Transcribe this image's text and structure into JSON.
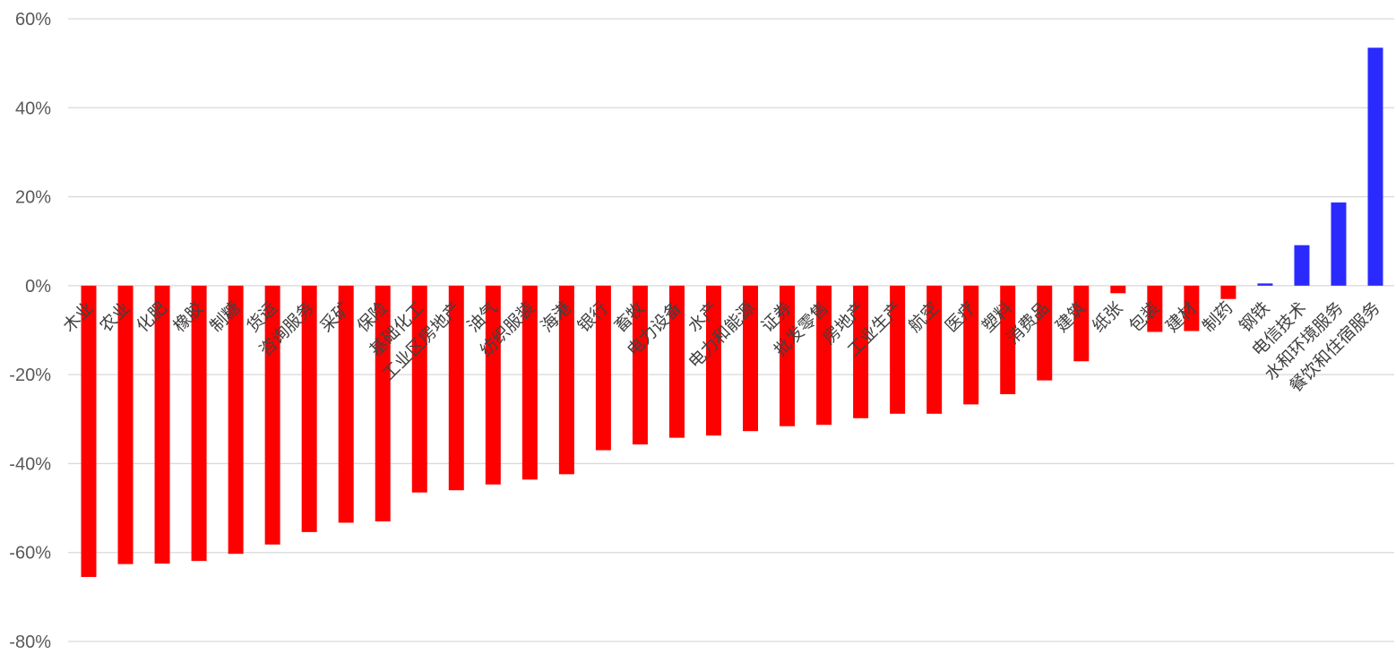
{
  "chart_data": {
    "type": "bar",
    "title": "",
    "xlabel": "",
    "ylabel": "",
    "ylim": [
      -0.8,
      0.6
    ],
    "yticks": [
      0.6,
      0.4,
      0.2,
      0,
      -0.2,
      -0.4,
      -0.6,
      -0.8
    ],
    "ytick_labels": [
      "60%",
      "40%",
      "20%",
      "0%",
      "-20%",
      "-40%",
      "-60%",
      "-80%"
    ],
    "grid": true,
    "legend": "none",
    "negative_color": "#ff0000",
    "positive_color": "#2a2aff",
    "categories": [
      "木业",
      "农业",
      "化肥",
      "橡胶",
      "制糖",
      "货运",
      "咨询服务",
      "采矿",
      "保险",
      "基础化工",
      "工业区房地产",
      "油气",
      "纺织服装",
      "海港",
      "银行",
      "畜牧",
      "电力设备",
      "水产",
      "电力和能源",
      "证券",
      "批发零售",
      "房地产",
      "工业生产",
      "航空",
      "医疗",
      "塑料",
      "消费品",
      "建筑",
      "纸张",
      "包装",
      "建材",
      "制药",
      "钢铁",
      "电信技术",
      "水和环境服务",
      "餐饮和住宿服务"
    ],
    "values": [
      -0.655,
      -0.626,
      -0.625,
      -0.619,
      -0.603,
      -0.582,
      -0.554,
      -0.533,
      -0.53,
      -0.465,
      -0.46,
      -0.447,
      -0.436,
      -0.424,
      -0.37,
      -0.357,
      -0.342,
      -0.337,
      -0.327,
      -0.316,
      -0.313,
      -0.298,
      -0.288,
      -0.288,
      -0.267,
      -0.244,
      -0.213,
      -0.17,
      -0.017,
      -0.104,
      -0.102,
      -0.03,
      0.005,
      0.091,
      0.187,
      0.535
    ]
  }
}
